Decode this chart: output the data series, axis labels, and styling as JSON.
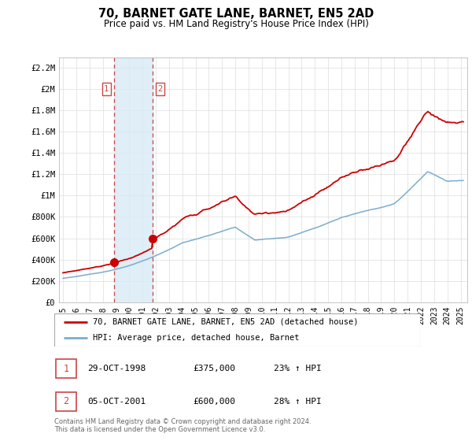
{
  "title": "70, BARNET GATE LANE, BARNET, EN5 2AD",
  "subtitle": "Price paid vs. HM Land Registry's House Price Index (HPI)",
  "ylim": [
    0,
    2300000
  ],
  "yticks": [
    0,
    200000,
    400000,
    600000,
    800000,
    1000000,
    1200000,
    1400000,
    1600000,
    1800000,
    2000000,
    2200000
  ],
  "ytick_labels": [
    "£0",
    "£200K",
    "£400K",
    "£600K",
    "£800K",
    "£1M",
    "£1.2M",
    "£1.4M",
    "£1.6M",
    "£1.8M",
    "£2M",
    "£2.2M"
  ],
  "xtick_years": [
    "1995",
    "1996",
    "1997",
    "1998",
    "1999",
    "2000",
    "2001",
    "2002",
    "2003",
    "2004",
    "2005",
    "2006",
    "2007",
    "2008",
    "2009",
    "2010",
    "2011",
    "2012",
    "2013",
    "2014",
    "2015",
    "2016",
    "2017",
    "2018",
    "2019",
    "2020",
    "2021",
    "2022",
    "2023",
    "2024",
    "2025"
  ],
  "sale1_date": 1998.83,
  "sale1_price": 375000,
  "sale2_date": 2001.76,
  "sale2_price": 600000,
  "line_color_red": "#cc0000",
  "line_color_blue": "#7aadcf",
  "shade_color": "#d8eaf5",
  "vline_color": "#cc4444",
  "legend_label_red": "70, BARNET GATE LANE, BARNET, EN5 2AD (detached house)",
  "legend_label_blue": "HPI: Average price, detached house, Barnet",
  "table_rows": [
    {
      "num": "1",
      "date": "29-OCT-1998",
      "price": "£375,000",
      "hpi": "23% ↑ HPI"
    },
    {
      "num": "2",
      "date": "05-OCT-2001",
      "price": "£600,000",
      "hpi": "28% ↑ HPI"
    }
  ],
  "footer": "Contains HM Land Registry data © Crown copyright and database right 2024.\nThis data is licensed under the Open Government Licence v3.0.",
  "grid_color": "#dddddd"
}
